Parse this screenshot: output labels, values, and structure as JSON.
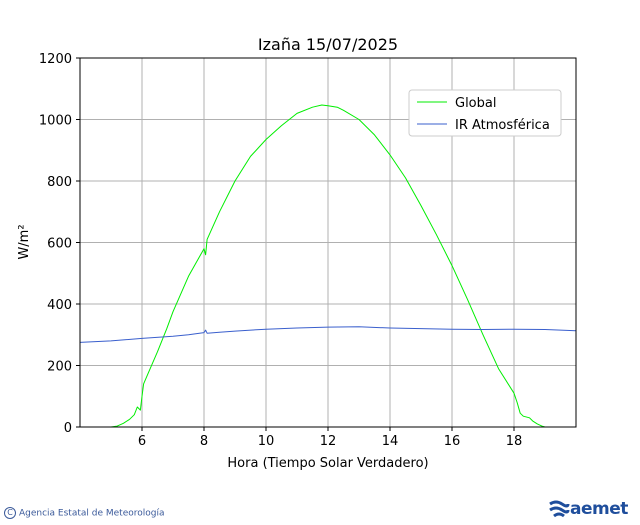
{
  "chart_data": {
    "type": "line",
    "title": "Izaña 15/07/2025",
    "xlabel": "Hora (Tiempo Solar Verdadero)",
    "ylabel": "W/m²",
    "xlim": [
      4,
      20
    ],
    "ylim": [
      0,
      1200
    ],
    "xticks": [
      6,
      8,
      10,
      12,
      14,
      16,
      18
    ],
    "yticks": [
      0,
      200,
      400,
      600,
      800,
      1000,
      1200
    ],
    "grid": true,
    "legend_position": "top-right",
    "series": [
      {
        "name": "Global",
        "color": "#00ee00",
        "x": [
          4,
          5.0,
          5.2,
          5.4,
          5.6,
          5.75,
          5.85,
          5.95,
          6.0,
          6.05,
          6.2,
          6.5,
          6.8,
          7.0,
          7.5,
          8.0,
          8.05,
          8.1,
          8.5,
          9.0,
          9.5,
          10.0,
          10.5,
          11.0,
          11.5,
          11.8,
          12.0,
          12.3,
          12.5,
          13.0,
          13.5,
          14.0,
          14.5,
          15.0,
          15.5,
          16.0,
          16.5,
          17.0,
          17.5,
          18.0,
          18.1,
          18.2,
          18.3,
          18.5,
          18.6,
          18.75,
          18.9,
          19.0,
          20
        ],
        "y": [
          0,
          0,
          3,
          12,
          25,
          40,
          65,
          55,
          100,
          140,
          175,
          245,
          320,
          375,
          490,
          580,
          560,
          610,
          700,
          800,
          880,
          935,
          980,
          1020,
          1040,
          1047,
          1045,
          1040,
          1030,
          1000,
          950,
          885,
          810,
          720,
          625,
          525,
          415,
          300,
          190,
          110,
          80,
          45,
          35,
          30,
          20,
          10,
          3,
          0,
          0
        ]
      },
      {
        "name": "IR Atmosférica",
        "color": "#3a5fcd",
        "x": [
          4,
          5,
          6,
          7,
          7.5,
          8.0,
          8.05,
          8.1,
          8.5,
          9,
          10,
          11,
          12,
          13,
          14,
          15,
          16,
          17,
          18,
          19,
          20
        ],
        "y": [
          275,
          280,
          288,
          295,
          300,
          307,
          315,
          305,
          308,
          312,
          318,
          322,
          325,
          326,
          322,
          320,
          318,
          317,
          318,
          317,
          313
        ]
      }
    ]
  },
  "footer": {
    "agency": "Agencia Estatal de Meteorología",
    "copyright_symbol": "C",
    "logo_text": "aemet",
    "logo_color": "#1f4e9c"
  }
}
